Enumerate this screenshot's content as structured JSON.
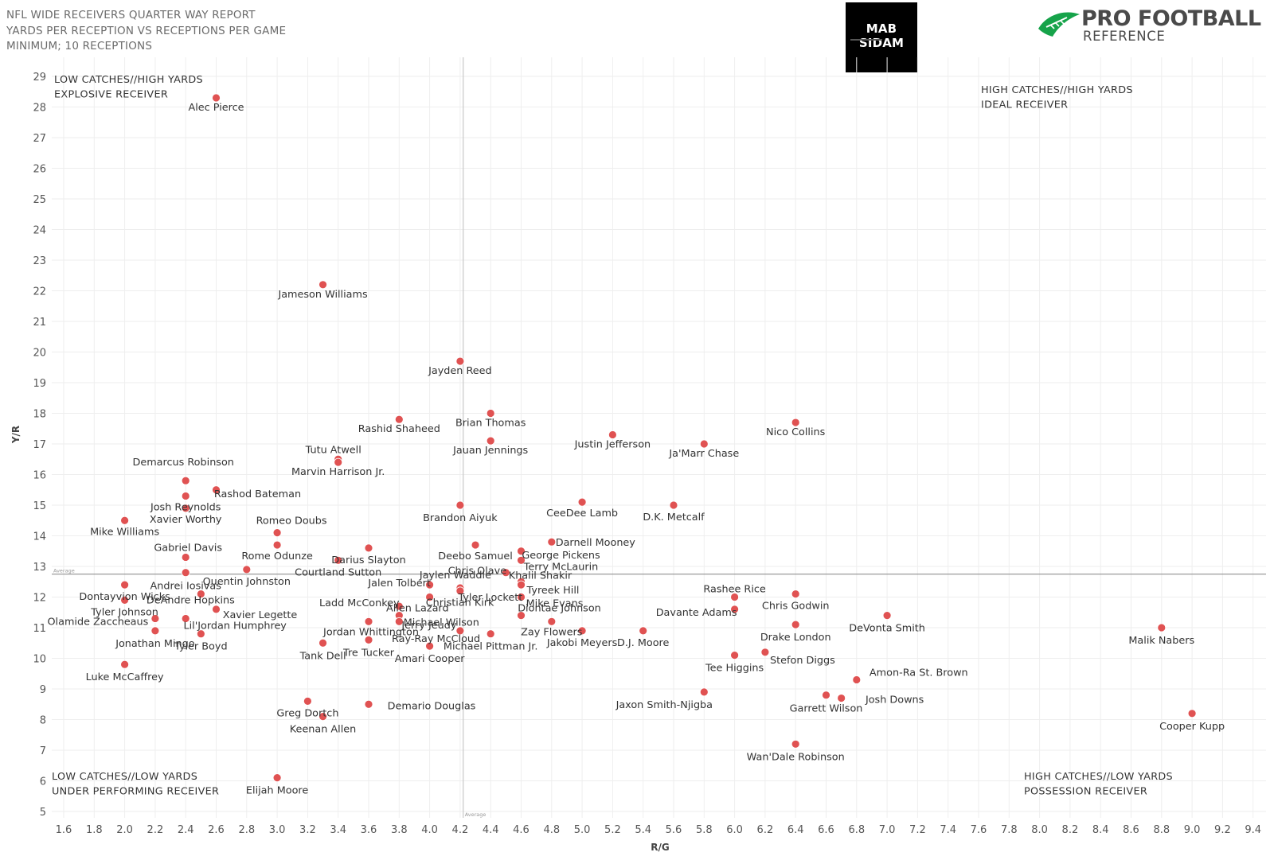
{
  "header": {
    "line1": "NFL WIDE RECEIVERS QUARTER WAY REPORT",
    "line2": "YARDS PER RECEPTION VS RECEPTIONS PER GAME",
    "line3": "MINIMUM; 10 RECEPTIONS"
  },
  "logos": {
    "mab": "MAB SIDAM",
    "pfr_line1": "PRO FOOTBALL",
    "pfr_line2": "REFERENCE",
    "pfr_color": "#16a34a"
  },
  "colors": {
    "point": "#e05252",
    "average_line": "#999999",
    "grid": "#eeeeee"
  },
  "chart_data": {
    "type": "scatter",
    "xlabel": "R/G",
    "ylabel": "Y/R",
    "xlim": [
      1.5,
      9.5
    ],
    "ylim": [
      4.6,
      29.7
    ],
    "xticks": [
      1.6,
      1.8,
      2.0,
      2.2,
      2.4,
      2.6,
      2.8,
      3.0,
      3.2,
      3.4,
      3.6,
      3.8,
      4.0,
      4.2,
      4.4,
      4.6,
      4.8,
      5.0,
      5.2,
      5.4,
      5.6,
      5.8,
      6.0,
      6.2,
      6.4,
      6.6,
      6.8,
      7.0,
      7.2,
      7.4,
      7.6,
      7.8,
      8.0,
      8.2,
      8.4,
      8.6,
      8.8,
      9.0,
      9.2,
      9.4
    ],
    "xtick_labels": [
      "1.6",
      "1.8",
      "2.0",
      "2.2",
      "2.4",
      "2.6",
      "2.8",
      "3.0",
      "3.2",
      "3.4",
      "3.6",
      "3.8",
      "4.0",
      "4.2",
      "4.4",
      "4.6",
      "4.8",
      "5.0",
      "5.2",
      "5.4",
      "5.6",
      "5.8",
      "6.0",
      "6.2",
      "6.4",
      "6.6",
      "6.8",
      "7.0",
      "7.2",
      "7.4",
      "7.6",
      "7.8",
      "8.0",
      "8.2",
      "8.4",
      "8.6",
      "8.8",
      "9.0",
      "9.2",
      "9.4"
    ],
    "yticks": [
      5,
      6,
      7,
      8,
      9,
      10,
      11,
      12,
      13,
      14,
      15,
      16,
      17,
      18,
      19,
      20,
      21,
      22,
      23,
      24,
      25,
      26,
      27,
      28,
      29
    ],
    "ytick_labels": [
      "5",
      "6",
      "7",
      "8",
      "9",
      "10",
      "11",
      "12",
      "13",
      "14",
      "15",
      "16",
      "17",
      "18",
      "19",
      "20",
      "21",
      "22",
      "23",
      "24",
      "25",
      "26",
      "27",
      "28",
      "29"
    ],
    "grid": true,
    "reference_lines": {
      "x_average": 4.22,
      "y_average": 12.75,
      "label": "Average"
    },
    "quadrant_labels": {
      "top_left": [
        "LOW CATCHES//HIGH YARDS",
        "EXPLOSIVE RECEIVER"
      ],
      "top_right": [
        "HIGH CATCHES//HIGH YARDS",
        "IDEAL RECEIVER"
      ],
      "bottom_left": [
        "LOW CATCHES//LOW YARDS",
        "UNDER PERFORMING RECEIVER"
      ],
      "bottom_right": [
        "HIGH CATCHES//LOW YARDS",
        "POSSESSION RECEIVER"
      ]
    },
    "points": [
      {
        "name": "Alec Pierce",
        "x": 2.6,
        "y": 28.3,
        "lx": 0,
        "ly": 16
      },
      {
        "name": "Jameson Williams",
        "x": 3.3,
        "y": 22.2,
        "lx": 0,
        "ly": 16
      },
      {
        "name": "Jayden Reed",
        "x": 4.2,
        "y": 19.7,
        "lx": 0,
        "ly": 16
      },
      {
        "name": "Rashid Shaheed",
        "x": 3.8,
        "y": 17.8,
        "lx": 0,
        "ly": 16
      },
      {
        "name": "Brian Thomas",
        "x": 4.4,
        "y": 18.0,
        "lx": 0,
        "ly": 16
      },
      {
        "name": "Jauan Jennings",
        "x": 4.4,
        "y": 17.1,
        "lx": 0,
        "ly": 16
      },
      {
        "name": "Justin Jefferson",
        "x": 5.2,
        "y": 17.3,
        "lx": 0,
        "ly": 16
      },
      {
        "name": "Ja'Marr Chase",
        "x": 5.8,
        "y": 17.0,
        "lx": 0,
        "ly": 16
      },
      {
        "name": "Nico Collins",
        "x": 6.4,
        "y": 17.7,
        "lx": 0,
        "ly": 16
      },
      {
        "name": "Tutu Atwell",
        "x": 3.4,
        "y": 16.5,
        "lx": -6,
        "ly": -8
      },
      {
        "name": "Marvin Harrison Jr.",
        "x": 3.4,
        "y": 16.4,
        "lx": 0,
        "ly": 16
      },
      {
        "name": "Demarcus Robinson",
        "x": 2.4,
        "y": 15.8,
        "lx": -3,
        "ly": -19
      },
      {
        "name": "Rashod Bateman",
        "x": 2.6,
        "y": 15.5,
        "lx": 52,
        "ly": 9
      },
      {
        "name": "Josh Reynolds",
        "x": 2.4,
        "y": 15.3,
        "lx": 0,
        "ly": 18
      },
      {
        "name": "Xavier Worthy",
        "x": 2.4,
        "y": 14.9,
        "lx": 0,
        "ly": 18
      },
      {
        "name": "Mike Williams",
        "x": 2.0,
        "y": 14.5,
        "lx": 0,
        "ly": 18
      },
      {
        "name": "Brandon Aiyuk",
        "x": 4.2,
        "y": 15.0,
        "lx": 0,
        "ly": 20
      },
      {
        "name": "CeeDee Lamb",
        "x": 5.0,
        "y": 15.1,
        "lx": 0,
        "ly": 18
      },
      {
        "name": "D.K. Metcalf",
        "x": 5.6,
        "y": 15.0,
        "lx": 0,
        "ly": 19
      },
      {
        "name": "Romeo Doubs",
        "x": 3.0,
        "y": 14.1,
        "lx": 18,
        "ly": -11
      },
      {
        "name": "Gabriel Davis",
        "x": 2.4,
        "y": 13.3,
        "lx": 3,
        "ly": -8
      },
      {
        "name": "Rome Odunze",
        "x": 3.0,
        "y": 13.7,
        "lx": 0,
        "ly": 18
      },
      {
        "name": "Darius Slayton",
        "x": 3.6,
        "y": 13.6,
        "lx": 0,
        "ly": 19
      },
      {
        "name": "Deebo Samuel",
        "x": 4.3,
        "y": 13.7,
        "lx": 0,
        "ly": 18
      },
      {
        "name": "Darnell Mooney",
        "x": 4.8,
        "y": 13.8,
        "lx": 55,
        "ly": 5
      },
      {
        "name": "George Pickens",
        "x": 4.6,
        "y": 13.5,
        "lx": 50,
        "ly": 9
      },
      {
        "name": "Terry McLaurin",
        "x": 4.6,
        "y": 13.2,
        "lx": 50,
        "ly": 12
      },
      {
        "name": "Courtland Sutton",
        "x": 3.4,
        "y": 13.2,
        "lx": 0,
        "ly": 19
      },
      {
        "name": "Quentin Johnston",
        "x": 2.8,
        "y": 12.9,
        "lx": 0,
        "ly": 19
      },
      {
        "name": "Andrei Iosivas",
        "x": 2.4,
        "y": 12.8,
        "lx": 0,
        "ly": 21
      },
      {
        "name": "Chris Olave",
        "x": 4.5,
        "y": 12.8,
        "lx": -36,
        "ly": 2
      },
      {
        "name": "Jaylen Waddle",
        "x": 4.2,
        "y": 12.3,
        "lx": -6,
        "ly": -12
      },
      {
        "name": "Khalil Shakir",
        "x": 4.6,
        "y": 12.5,
        "lx": 24,
        "ly": -4
      },
      {
        "name": "Jalen Tolbert",
        "x": 4.0,
        "y": 12.4,
        "lx": -38,
        "ly": 2
      },
      {
        "name": "Dontayvion Wicks",
        "x": 2.0,
        "y": 12.4,
        "lx": 0,
        "ly": 19
      },
      {
        "name": "Tyler Lockett",
        "x": 4.2,
        "y": 12.2,
        "lx": 38,
        "ly": 12
      },
      {
        "name": "Tyreek Hill",
        "x": 4.6,
        "y": 12.4,
        "lx": 40,
        "ly": 11
      },
      {
        "name": "DeAndre Hopkins",
        "x": 2.5,
        "y": 12.1,
        "lx": -13,
        "ly": 12
      },
      {
        "name": "Ladd McConkey",
        "x": 3.8,
        "y": 11.7,
        "lx": -50,
        "ly": 0
      },
      {
        "name": "Christian Kirk",
        "x": 4.0,
        "y": 12.0,
        "lx": 38,
        "ly": 11
      },
      {
        "name": "Mike Evans",
        "x": 4.6,
        "y": 12.0,
        "lx": 42,
        "ly": 12
      },
      {
        "name": "Diontae Johnson",
        "x": 4.6,
        "y": 11.4,
        "lx": 48,
        "ly": -5
      },
      {
        "name": "Tyler Johnson",
        "x": 2.0,
        "y": 11.9,
        "lx": 0,
        "ly": 19
      },
      {
        "name": "Xavier Legette",
        "x": 2.6,
        "y": 11.6,
        "lx": 55,
        "ly": 11
      },
      {
        "name": "Allen Lazard",
        "x": 3.8,
        "y": 11.4,
        "lx": 23,
        "ly": -5
      },
      {
        "name": "Michael Wilson",
        "x": 3.8,
        "y": 11.2,
        "lx": 53,
        "ly": 5
      },
      {
        "name": "Olamide Zaccheaus",
        "x": 2.2,
        "y": 11.3,
        "lx": -72,
        "ly": 8
      },
      {
        "name": "Lil'Jordan Humphrey",
        "x": 2.4,
        "y": 11.3,
        "lx": 62,
        "ly": 13
      },
      {
        "name": "Jerry Jeudy",
        "x": 4.2,
        "y": 10.9,
        "lx": -39,
        "ly": -3
      },
      {
        "name": "Jordan Whittington",
        "x": 3.6,
        "y": 11.2,
        "lx": 3,
        "ly": 17
      },
      {
        "name": "Zay Flowers",
        "x": 4.8,
        "y": 11.2,
        "lx": 0,
        "ly": 17
      },
      {
        "name": "Davante Adams",
        "x": 6.0,
        "y": 11.6,
        "lx": -48,
        "ly": 8
      },
      {
        "name": "Chris Godwin",
        "x": 6.4,
        "y": 12.1,
        "lx": 0,
        "ly": 19
      },
      {
        "name": "Rashee Rice",
        "x": 6.0,
        "y": 12.0,
        "lx": 0,
        "ly": -6
      },
      {
        "name": "DeVonta Smith",
        "x": 7.0,
        "y": 11.4,
        "lx": 0,
        "ly": 20
      },
      {
        "name": "Drake London",
        "x": 6.4,
        "y": 11.1,
        "lx": 0,
        "ly": 20
      },
      {
        "name": "Malik Nabers",
        "x": 8.8,
        "y": 11.0,
        "lx": 0,
        "ly": 20
      },
      {
        "name": "Jonathan Mingo",
        "x": 2.2,
        "y": 10.9,
        "lx": 0,
        "ly": 20
      },
      {
        "name": "Tyler Boyd",
        "x": 2.5,
        "y": 10.8,
        "lx": 0,
        "ly": 20
      },
      {
        "name": "Ray-Ray McCloud",
        "x": 4.0,
        "y": 10.4,
        "lx": 8,
        "ly": -5
      },
      {
        "name": "Michael Pittman Jr.",
        "x": 4.4,
        "y": 10.8,
        "lx": 0,
        "ly": 20
      },
      {
        "name": "Jakobi Meyers",
        "x": 5.0,
        "y": 10.9,
        "lx": 0,
        "ly": 19
      },
      {
        "name": "D.J. Moore",
        "x": 5.4,
        "y": 10.9,
        "lx": 0,
        "ly": 19
      },
      {
        "name": "Tank Dell",
        "x": 3.3,
        "y": 10.5,
        "lx": 0,
        "ly": 20
      },
      {
        "name": "Tre Tucker",
        "x": 3.6,
        "y": 10.6,
        "lx": 0,
        "ly": 20
      },
      {
        "name": "Amari Cooper",
        "x": 4.0,
        "y": 10.4,
        "lx": 0,
        "ly": 20
      },
      {
        "name": "Stefon Diggs",
        "x": 6.2,
        "y": 10.2,
        "lx": 47,
        "ly": 14
      },
      {
        "name": "Tee Higgins",
        "x": 6.0,
        "y": 10.1,
        "lx": 0,
        "ly": 20
      },
      {
        "name": "Luke McCaffrey",
        "x": 2.0,
        "y": 9.8,
        "lx": 0,
        "ly": 20
      },
      {
        "name": "Amon-Ra St. Brown",
        "x": 6.8,
        "y": 9.3,
        "lx": 78,
        "ly": -5
      },
      {
        "name": "Josh Downs",
        "x": 6.7,
        "y": 8.7,
        "lx": 67,
        "ly": 6
      },
      {
        "name": "Garrett Wilson",
        "x": 6.6,
        "y": 8.8,
        "lx": 0,
        "ly": 21
      },
      {
        "name": "Jaxon Smith-Njigba",
        "x": 5.8,
        "y": 8.9,
        "lx": -50,
        "ly": 20
      },
      {
        "name": "Demario Douglas",
        "x": 3.6,
        "y": 8.5,
        "lx": 79,
        "ly": 6
      },
      {
        "name": "Greg Dortch",
        "x": 3.2,
        "y": 8.6,
        "lx": 0,
        "ly": 19
      },
      {
        "name": "Keenan Allen",
        "x": 3.3,
        "y": 8.1,
        "lx": 0,
        "ly": 20
      },
      {
        "name": "Cooper Kupp",
        "x": 9.0,
        "y": 8.2,
        "lx": 0,
        "ly": 20
      },
      {
        "name": "Wan'Dale Robinson",
        "x": 6.4,
        "y": 7.2,
        "lx": 0,
        "ly": 20
      },
      {
        "name": "Elijah Moore",
        "x": 3.0,
        "y": 6.1,
        "lx": 0,
        "ly": 20
      }
    ]
  }
}
